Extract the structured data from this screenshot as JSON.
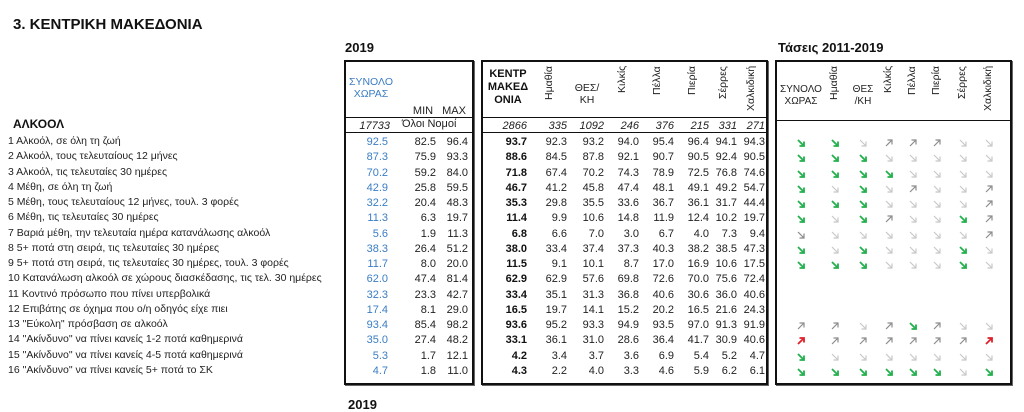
{
  "title": "3. ΚΕΝΤΡΙΚΗ ΜΑΚΕΔΟΝΙΑ",
  "section_year": "2019",
  "section_trends": "Τάσεις 2011-2019",
  "section_cut_year": "2019",
  "category": "ΑΛΚΟΟΛ",
  "national": {
    "header_line1": "ΣΥΝΟΛΟ",
    "header_line2": "ΧΩΡΑΣ",
    "min_label": "MIN",
    "max_label": "MAX",
    "count": "17733",
    "minmax_note": "Όλοι Νομοί"
  },
  "region": {
    "header_lines": [
      "ΚΕΝΤΡ",
      "ΜΑΚΕΔ",
      "ΟΝΙΑ"
    ],
    "count": "2866",
    "prefectures": [
      {
        "name": "Ημαθία",
        "vertical": true,
        "count": "335"
      },
      {
        "name": "ΘΕΣ/ ΚΗ",
        "line1": "ΘΕΣ/",
        "line2": "ΚΗ",
        "vertical": false,
        "count": "1092"
      },
      {
        "name": "Κιλκίς",
        "vertical": true,
        "count": "246"
      },
      {
        "name": "Πέλλα",
        "vertical": true,
        "count": "376"
      },
      {
        "name": "Πιερία",
        "vertical": true,
        "count": "215"
      },
      {
        "name": "Σέρρες",
        "vertical": true,
        "count": "331"
      },
      {
        "name": "Χαλκιδική",
        "vertical": true,
        "count": "271"
      }
    ]
  },
  "trends": {
    "headers": [
      {
        "line1": "ΣΥΝΟΛΟ",
        "line2": "ΧΩΡΑΣ",
        "vertical": false
      },
      {
        "name": "Ημαθία",
        "vertical": true
      },
      {
        "line1": "ΘΕΣ",
        "line2": "/ΚΗ",
        "vertical": false
      },
      {
        "name": "Κιλκίς",
        "vertical": true
      },
      {
        "name": "Πέλλα",
        "vertical": true
      },
      {
        "name": "Πιερία",
        "vertical": true
      },
      {
        "name": "Σέρρες",
        "vertical": true
      },
      {
        "name": "Χαλκιδική",
        "vertical": true
      }
    ],
    "legend": {
      "down-green": "#22b14c",
      "down-grey": "#c8c8c8",
      "down-dark": "#888888",
      "up-grey": "#8c8c8c",
      "up-red": "#e0202a"
    }
  },
  "rows": [
    {
      "label": "1 Αλκοόλ, σε όλη τη ζωή",
      "total": "92.5",
      "min": "82.5",
      "max": "96.4",
      "region": "93.7",
      "pref": [
        "92.3",
        "93.2",
        "94.0",
        "95.4",
        "96.4",
        "94.1",
        "94.3"
      ],
      "trend": [
        "down-green",
        "down-green",
        "down-grey",
        "up-grey",
        "up-grey",
        "up-grey",
        "down-grey",
        "down-grey"
      ]
    },
    {
      "label": "2 Αλκοόλ, τους τελευταίους 12 μήνες",
      "total": "87.3",
      "min": "75.9",
      "max": "93.3",
      "region": "88.6",
      "pref": [
        "84.5",
        "87.8",
        "92.1",
        "90.7",
        "90.5",
        "92.4",
        "90.5"
      ],
      "trend": [
        "down-green",
        "down-green",
        "down-green",
        "down-grey",
        "down-grey",
        "down-grey",
        "down-grey",
        "down-grey"
      ]
    },
    {
      "label": "3 Αλκοόλ, τις τελευταίες 30 ημέρες",
      "total": "70.2",
      "min": "59.2",
      "max": "84.0",
      "region": "71.8",
      "pref": [
        "67.4",
        "70.2",
        "74.3",
        "78.9",
        "72.5",
        "76.8",
        "74.6"
      ],
      "trend": [
        "down-green",
        "down-green",
        "down-green",
        "down-green",
        "down-grey",
        "down-grey",
        "down-grey",
        "down-grey"
      ]
    },
    {
      "label": "4 Μέθη, σε όλη τη ζωή",
      "total": "42.9",
      "min": "25.8",
      "max": "59.5",
      "region": "46.7",
      "pref": [
        "41.2",
        "45.8",
        "47.4",
        "48.1",
        "49.1",
        "49.2",
        "54.7"
      ],
      "trend": [
        "down-green",
        "down-grey",
        "down-green",
        "down-grey",
        "up-grey",
        "down-grey",
        "down-grey",
        "up-grey"
      ]
    },
    {
      "label": "5 Μέθη, τους τελευταίους 12 μήνες, τουλ. 3 φορές",
      "total": "32.2",
      "min": "20.4",
      "max": "48.3",
      "region": "35.3",
      "pref": [
        "29.8",
        "35.5",
        "33.6",
        "36.7",
        "36.1",
        "31.7",
        "44.4"
      ],
      "trend": [
        "down-green",
        "down-green",
        "down-green",
        "down-grey",
        "down-grey",
        "down-grey",
        "down-grey",
        "up-grey"
      ]
    },
    {
      "label": "6 Μέθη, τις τελευταίες 30 ημέρες",
      "total": "11.3",
      "min": "6.3",
      "max": "19.7",
      "region": "11.4",
      "pref": [
        "9.9",
        "10.6",
        "14.8",
        "11.9",
        "12.4",
        "10.2",
        "19.7"
      ],
      "trend": [
        "down-green",
        "down-grey",
        "down-green",
        "up-grey",
        "down-grey",
        "down-grey",
        "down-green",
        "up-grey"
      ]
    },
    {
      "label": "7 Βαριά μέθη, την τελευταία ημέρα κατανάλωσης αλκοόλ",
      "total": "5.6",
      "min": "1.9",
      "max": "11.3",
      "region": "6.8",
      "pref": [
        "6.6",
        "7.0",
        "3.0",
        "6.7",
        "4.0",
        "7.3",
        "9.4"
      ],
      "trend": [
        "down-dark",
        "down-grey",
        "down-grey",
        "down-grey",
        "down-grey",
        "down-grey",
        "down-grey",
        "up-grey"
      ]
    },
    {
      "label": "8 5+ ποτά στη σειρά, τις τελευταίες 30 ημέρες",
      "total": "38.3",
      "min": "26.4",
      "max": "51.2",
      "region": "38.0",
      "pref": [
        "33.4",
        "37.4",
        "37.3",
        "40.3",
        "38.2",
        "38.5",
        "47.3"
      ],
      "trend": [
        "down-green",
        "down-grey",
        "down-green",
        "down-grey",
        "down-grey",
        "down-grey",
        "down-green",
        "down-grey"
      ]
    },
    {
      "label": "9 5+ ποτά στη σειρά, τις τελευταίες 30 ημέρες, τουλ. 3 φορές",
      "total": "11.7",
      "min": "8.0",
      "max": "20.0",
      "region": "11.5",
      "pref": [
        "9.1",
        "10.1",
        "8.7",
        "17.0",
        "16.9",
        "10.6",
        "17.5"
      ],
      "trend": [
        "down-green",
        "down-green",
        "down-green",
        "down-grey",
        "down-grey",
        "down-grey",
        "down-green",
        "down-grey"
      ]
    },
    {
      "label": "10 Κατανάλωση αλκοόλ σε χώρους διασκέδασης, τις τελ. 30 ημέρες",
      "total": "62.0",
      "min": "47.4",
      "max": "81.4",
      "region": "62.9",
      "pref": [
        "62.9",
        "57.6",
        "69.8",
        "72.6",
        "70.0",
        "75.6",
        "72.4"
      ],
      "trend": []
    },
    {
      "label": "11 Κοντινό πρόσωπο που πίνει υπερβολικά",
      "total": "32.3",
      "min": "23.3",
      "max": "42.7",
      "region": "33.4",
      "pref": [
        "35.1",
        "31.3",
        "36.8",
        "40.6",
        "30.6",
        "36.0",
        "40.6"
      ],
      "trend": []
    },
    {
      "label": "12 Επιβάτης σε όχημα που ο/η οδηγός είχε πιει",
      "total": "17.4",
      "min": "8.1",
      "max": "29.0",
      "region": "16.5",
      "pref": [
        "19.7",
        "14.1",
        "15.2",
        "20.2",
        "16.5",
        "21.6",
        "24.3"
      ],
      "trend": []
    },
    {
      "label": "13 \"Εύκολη\" πρόσβαση σε αλκοόλ",
      "total": "93.4",
      "min": "85.4",
      "max": "98.2",
      "region": "93.6",
      "pref": [
        "95.2",
        "93.3",
        "94.9",
        "93.5",
        "97.0",
        "91.3",
        "91.9"
      ],
      "trend": [
        "up-grey",
        "up-grey",
        "down-grey",
        "up-grey",
        "down-green",
        "up-grey",
        "down-grey",
        "down-grey"
      ]
    },
    {
      "label": "14 \"Ακίνδυνο\" να πίνει κανείς 1-2 ποτά καθημερινά",
      "total": "35.0",
      "min": "27.4",
      "max": "48.2",
      "region": "33.1",
      "pref": [
        "36.1",
        "31.0",
        "28.6",
        "36.4",
        "41.7",
        "30.9",
        "40.6"
      ],
      "trend": [
        "up-red",
        "up-grey",
        "up-grey",
        "up-grey",
        "up-grey",
        "up-grey",
        "up-grey",
        "up-red"
      ]
    },
    {
      "label": "15 \"Ακίνδυνο\" να πίνει κανείς 4-5 ποτά καθημερινά",
      "total": "5.3",
      "min": "1.7",
      "max": "12.1",
      "region": "4.2",
      "pref": [
        "3.4",
        "3.7",
        "3.6",
        "6.9",
        "5.4",
        "5.2",
        "4.7"
      ],
      "trend": [
        "down-green",
        "down-grey",
        "down-grey",
        "down-grey",
        "down-grey",
        "down-grey",
        "down-grey",
        "down-grey"
      ]
    },
    {
      "label": "16 \"Ακίνδυνο\" να πίνει κανείς 5+ ποτά το ΣΚ",
      "total": "4.7",
      "min": "1.8",
      "max": "11.0",
      "region": "4.3",
      "pref": [
        "2.2",
        "4.0",
        "3.3",
        "4.6",
        "5.9",
        "6.2",
        "6.1"
      ],
      "trend": [
        "down-green",
        "down-green",
        "down-green",
        "down-green",
        "down-green",
        "down-green",
        "down-grey",
        "down-green"
      ]
    }
  ]
}
